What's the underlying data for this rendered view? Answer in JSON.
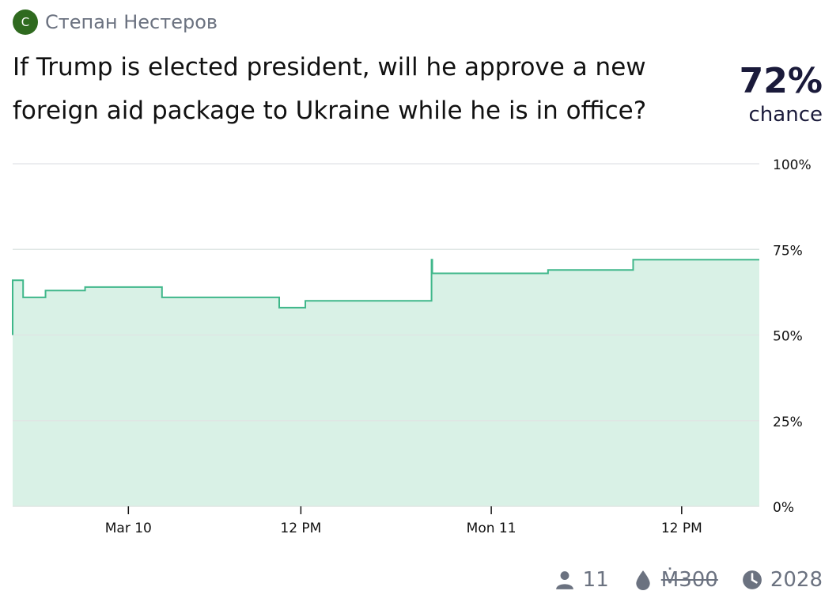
{
  "author": {
    "initial": "C",
    "name": "Степан Нестеров"
  },
  "question": "If Trump is elected president, will he approve a new foreign aid package to Ukraine while he is in office?",
  "probability": {
    "value": "72%",
    "label": "chance"
  },
  "colors": {
    "line": "#3fb78a",
    "fill": "#d9f1e6",
    "grid": "#e5e7eb",
    "avatar": "#2f6a1f"
  },
  "chart_data": {
    "type": "area",
    "y_ticks": [
      "100%",
      "75%",
      "50%",
      "25%",
      "0%"
    ],
    "x_ticks": [
      {
        "label": "Mar 10",
        "t": 0.155
      },
      {
        "label": "12 PM",
        "t": 0.386
      },
      {
        "label": "Mon 11",
        "t": 0.641
      },
      {
        "label": "12 PM",
        "t": 0.896
      }
    ],
    "ylim": [
      0,
      100
    ],
    "series": [
      {
        "points": [
          [
            0.0,
            50
          ],
          [
            0.0,
            66
          ],
          [
            0.014,
            61
          ],
          [
            0.044,
            63
          ],
          [
            0.097,
            64
          ],
          [
            0.2,
            61
          ],
          [
            0.357,
            58
          ],
          [
            0.392,
            60
          ],
          [
            0.561,
            72
          ],
          [
            0.562,
            68
          ],
          [
            0.717,
            69
          ],
          [
            0.831,
            72
          ],
          [
            1.0,
            72
          ]
        ]
      }
    ]
  },
  "footer": {
    "traders": "11",
    "volume": "Ṁ300",
    "close_year": "2028"
  }
}
